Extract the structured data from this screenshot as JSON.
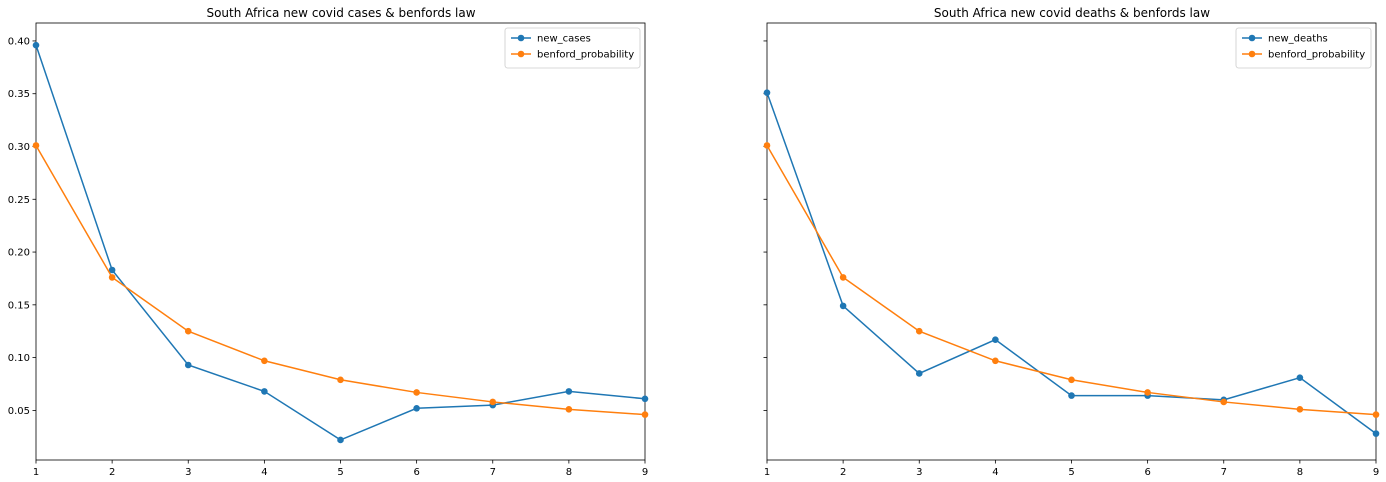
{
  "chart_data": [
    {
      "type": "line",
      "title": "South Africa new covid cases & benfords law",
      "xlabel": "",
      "ylabel": "",
      "x": [
        1,
        2,
        3,
        4,
        5,
        6,
        7,
        8,
        9
      ],
      "xlim": [
        1,
        9
      ],
      "ylim": [
        0.003,
        0.417
      ],
      "x_ticks": [
        "1",
        "2",
        "3",
        "4",
        "5",
        "6",
        "7",
        "8",
        "9"
      ],
      "y_ticks": [
        "0.05",
        "0.10",
        "0.15",
        "0.20",
        "0.25",
        "0.30",
        "0.35",
        "0.40"
      ],
      "y_tick_values": [
        0.05,
        0.1,
        0.15,
        0.2,
        0.25,
        0.3,
        0.35,
        0.4
      ],
      "grid": false,
      "legend_position": "top-right",
      "series": [
        {
          "name": "new_cases",
          "color": "#1f77b4",
          "values": [
            0.396,
            0.183,
            0.093,
            0.068,
            0.022,
            0.052,
            0.055,
            0.068,
            0.061
          ]
        },
        {
          "name": "benford_probability",
          "color": "#ff7f0e",
          "values": [
            0.301,
            0.176,
            0.125,
            0.097,
            0.079,
            0.067,
            0.058,
            0.051,
            0.046
          ]
        }
      ]
    },
    {
      "type": "line",
      "title": "South Africa new covid deaths & benfords law",
      "xlabel": "",
      "ylabel": "",
      "x": [
        1,
        2,
        3,
        4,
        5,
        6,
        7,
        8,
        9
      ],
      "xlim": [
        1,
        9
      ],
      "ylim": [
        0.003,
        0.417
      ],
      "x_ticks": [
        "1",
        "2",
        "3",
        "4",
        "5",
        "6",
        "7",
        "8",
        "9"
      ],
      "y_ticks": [],
      "y_tick_values": [
        0.05,
        0.1,
        0.15,
        0.2,
        0.25,
        0.3,
        0.35,
        0.4
      ],
      "grid": false,
      "legend_position": "top-right",
      "series": [
        {
          "name": "new_deaths",
          "color": "#1f77b4",
          "values": [
            0.351,
            0.149,
            0.085,
            0.117,
            0.064,
            0.064,
            0.06,
            0.081,
            0.028
          ]
        },
        {
          "name": "benford_probability",
          "color": "#ff7f0e",
          "values": [
            0.301,
            0.176,
            0.125,
            0.097,
            0.079,
            0.067,
            0.058,
            0.051,
            0.046
          ]
        }
      ]
    }
  ]
}
